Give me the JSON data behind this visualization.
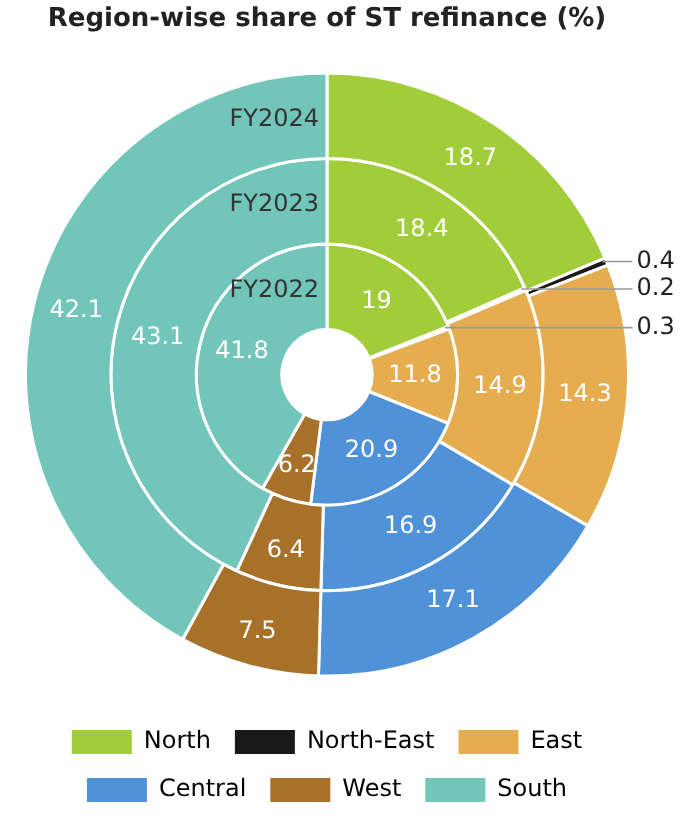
{
  "chart_data": {
    "type": "donut",
    "title": "Region-wise share of ST refinance (%)",
    "categories": [
      "North",
      "North-East",
      "East",
      "Central",
      "West",
      "South"
    ],
    "colors": [
      "#a2cd3a",
      "#1a1a1a",
      "#e5ad4f",
      "#4f92d8",
      "#a8712a",
      "#71c6b9"
    ],
    "series": [
      {
        "name": "FY2022",
        "values": [
          19,
          0.3,
          11.8,
          20.9,
          6.2,
          41.8
        ]
      },
      {
        "name": "FY2023",
        "values": [
          18.4,
          0.2,
          14.9,
          16.9,
          6.4,
          43.1
        ]
      },
      {
        "name": "FY2024",
        "values": [
          18.7,
          0.4,
          14.3,
          17.1,
          7.5,
          42.1
        ]
      }
    ],
    "data_labels": true,
    "legend": "bottom"
  }
}
